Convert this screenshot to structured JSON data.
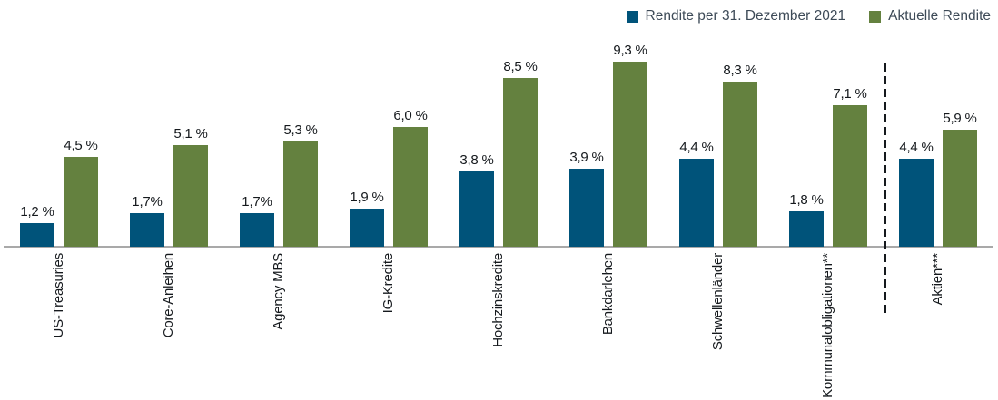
{
  "legend": [
    {
      "label": "Rendite per 31. Dezember 2021",
      "color": "#00537a",
      "icon": "blue-square-swatch"
    },
    {
      "label": "Aktuelle Rendite",
      "color": "#64813f",
      "icon": "green-square-swatch"
    }
  ],
  "chart_data": {
    "type": "bar",
    "categories": [
      "US-Treasuries",
      "Core-Anleihen",
      "Agency MBS",
      "IG-Kredite",
      "Hochzinskredite",
      "Bankdarlehen",
      "Schwellenländer",
      "Kommunalobligationen**",
      "Aktien***"
    ],
    "series": [
      {
        "name": "Rendite per 31. Dezember 2021",
        "color": "#00537a",
        "values": [
          1.2,
          1.7,
          1.7,
          1.9,
          3.8,
          3.9,
          4.4,
          1.8,
          4.4
        ],
        "labels": [
          "1,2 %",
          "1,7%",
          "1,7%",
          "1,9 %",
          "3,8 %",
          "3,9 %",
          "4,4 %",
          "1,8 %",
          "4,4 %"
        ]
      },
      {
        "name": "Aktuelle Rendite",
        "color": "#64813f",
        "values": [
          4.5,
          5.1,
          5.3,
          6.0,
          8.5,
          9.3,
          8.3,
          7.1,
          5.9
        ],
        "labels": [
          "4,5 %",
          "5,1 %",
          "5,3 %",
          "6,0 %",
          "8,5 %",
          "9,3 %",
          "8,3 %",
          "7,1 %",
          "5,9 %"
        ]
      }
    ],
    "title": "",
    "xlabel": "",
    "ylabel": "",
    "ylim": [
      0,
      9.8
    ],
    "grid": false,
    "value_labels_shown": true,
    "category_label_rotation": -90,
    "legend_position": "top-right",
    "axis_color": "#a9a9a9",
    "separator": {
      "style": "dashed-vertical-line",
      "before_category": "Aktien***",
      "color": "#15191d"
    }
  }
}
